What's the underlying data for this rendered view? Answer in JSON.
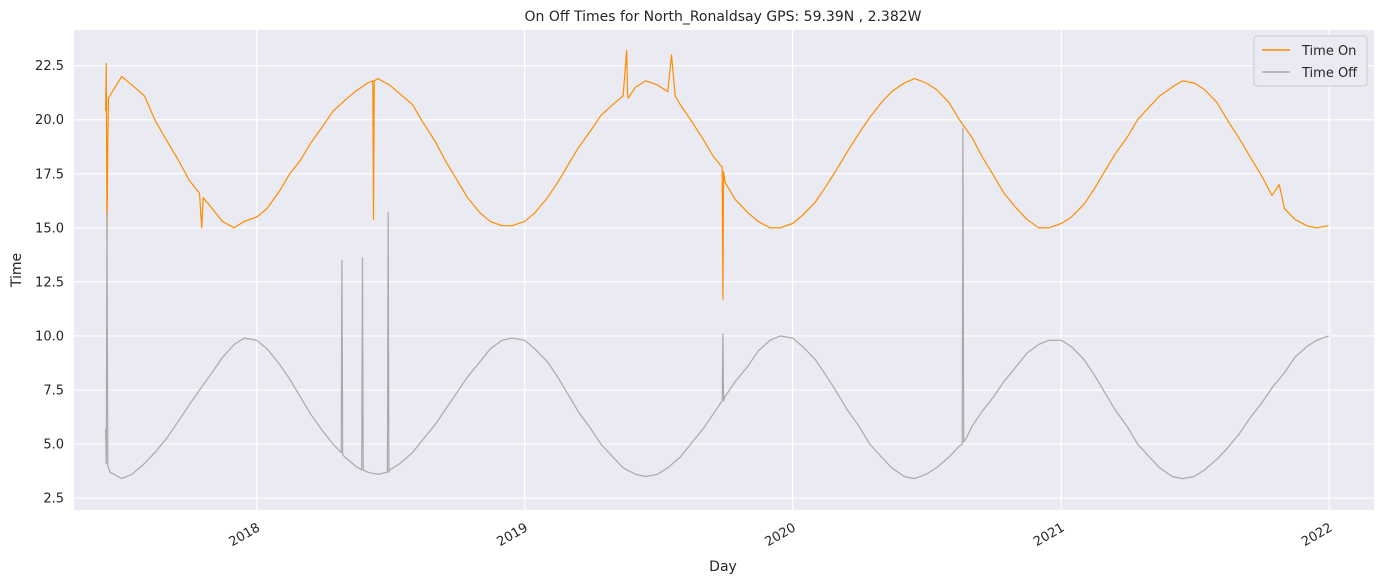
{
  "chart_data": {
    "type": "line",
    "title": "On Off Times for North_Ronaldsay  GPS: 59.39N , 2.382W",
    "xlabel": "Day",
    "ylabel": "Time",
    "xlim": [
      "2017-04-27",
      "2022-03-03"
    ],
    "ylim": [
      1.95,
      24.15
    ],
    "xticks": [
      {
        "date": "2018-01-01",
        "label": "2018"
      },
      {
        "date": "2019-01-01",
        "label": "2019"
      },
      {
        "date": "2020-01-01",
        "label": "2020"
      },
      {
        "date": "2021-01-01",
        "label": "2021"
      },
      {
        "date": "2022-01-01",
        "label": "2022"
      }
    ],
    "yticks": [
      "2.5",
      "5.0",
      "7.5",
      "10.0",
      "12.5",
      "15.0",
      "17.5",
      "20.0",
      "22.5"
    ],
    "grid": true,
    "background": "#eaeaf2",
    "legend_position": "top-right",
    "series": [
      {
        "name": "Time On",
        "color": "#ff8c00",
        "x": [
          "2017-06-09",
          "2017-06-10",
          "2017-06-11",
          "2017-06-12",
          "2017-06-13",
          "2017-06-20",
          "2017-07-01",
          "2017-07-15",
          "2017-08-01",
          "2017-08-15",
          "2017-09-01",
          "2017-09-15",
          "2017-10-01",
          "2017-10-15",
          "2017-10-18",
          "2017-10-20",
          "2017-11-01",
          "2017-11-15",
          "2017-12-01",
          "2017-12-15",
          "2018-01-01",
          "2018-01-15",
          "2018-02-01",
          "2018-02-15",
          "2018-03-01",
          "2018-03-15",
          "2018-04-01",
          "2018-04-15",
          "2018-05-01",
          "2018-05-15",
          "2018-06-01",
          "2018-06-08",
          "2018-06-09",
          "2018-06-10",
          "2018-06-15",
          "2018-07-01",
          "2018-07-15",
          "2018-08-01",
          "2018-08-15",
          "2018-09-01",
          "2018-09-15",
          "2018-10-01",
          "2018-10-15",
          "2018-11-01",
          "2018-11-15",
          "2018-12-01",
          "2018-12-15",
          "2019-01-01",
          "2019-01-15",
          "2019-02-01",
          "2019-02-15",
          "2019-03-01",
          "2019-03-15",
          "2019-04-01",
          "2019-04-15",
          "2019-05-01",
          "2019-05-15",
          "2019-05-20",
          "2019-05-21",
          "2019-05-22",
          "2019-06-01",
          "2019-06-15",
          "2019-07-01",
          "2019-07-15",
          "2019-07-20",
          "2019-07-25",
          "2019-08-01",
          "2019-08-15",
          "2019-09-01",
          "2019-09-15",
          "2019-09-27",
          "2019-09-28",
          "2019-09-29",
          "2019-10-01",
          "2019-10-15",
          "2019-11-01",
          "2019-11-15",
          "2019-12-01",
          "2019-12-15",
          "2020-01-01",
          "2020-01-15",
          "2020-02-01",
          "2020-02-15",
          "2020-03-01",
          "2020-03-15",
          "2020-04-01",
          "2020-04-15",
          "2020-05-01",
          "2020-05-15",
          "2020-06-01",
          "2020-06-15",
          "2020-07-01",
          "2020-07-15",
          "2020-08-01",
          "2020-08-15",
          "2020-09-01",
          "2020-09-15",
          "2020-10-01",
          "2020-10-15",
          "2020-11-01",
          "2020-11-15",
          "2020-12-01",
          "2020-12-15",
          "2021-01-01",
          "2021-01-15",
          "2021-02-01",
          "2021-02-15",
          "2021-03-01",
          "2021-03-15",
          "2021-04-01",
          "2021-04-15",
          "2021-05-01",
          "2021-05-15",
          "2021-06-01",
          "2021-06-15",
          "2021-07-01",
          "2021-07-15",
          "2021-08-01",
          "2021-08-15",
          "2021-09-01",
          "2021-09-15",
          "2021-10-01",
          "2021-10-15",
          "2021-10-25",
          "2021-11-01",
          "2021-11-15",
          "2021-12-01",
          "2021-12-15",
          "2021-12-31"
        ],
        "y": [
          20.4,
          22.6,
          14.4,
          18.9,
          21.0,
          21.4,
          22.0,
          21.6,
          21.1,
          20.0,
          19.0,
          18.2,
          17.2,
          16.6,
          15.0,
          16.4,
          15.9,
          15.3,
          15.0,
          15.3,
          15.5,
          15.9,
          16.7,
          17.5,
          18.1,
          18.9,
          19.7,
          20.4,
          20.9,
          21.3,
          21.7,
          21.8,
          15.4,
          21.8,
          21.9,
          21.6,
          21.2,
          20.7,
          19.9,
          19.0,
          18.1,
          17.2,
          16.4,
          15.7,
          15.3,
          15.1,
          15.1,
          15.3,
          15.7,
          16.4,
          17.1,
          17.9,
          18.7,
          19.5,
          20.2,
          20.7,
          21.1,
          23.2,
          21.2,
          21.0,
          21.5,
          21.8,
          21.6,
          21.3,
          23.0,
          21.1,
          20.7,
          20.0,
          19.1,
          18.3,
          17.8,
          11.7,
          17.6,
          17.1,
          16.3,
          15.7,
          15.3,
          15.0,
          15.0,
          15.2,
          15.6,
          16.2,
          16.9,
          17.7,
          18.5,
          19.4,
          20.1,
          20.8,
          21.3,
          21.7,
          21.9,
          21.7,
          21.4,
          20.8,
          20.0,
          19.2,
          18.3,
          17.4,
          16.6,
          15.9,
          15.4,
          15.0,
          15.0,
          15.2,
          15.5,
          16.1,
          16.8,
          17.6,
          18.4,
          19.2,
          20.0,
          20.6,
          21.1,
          21.5,
          21.8,
          21.7,
          21.4,
          20.8,
          20.0,
          19.1,
          18.3,
          17.4,
          16.5,
          17.0,
          15.9,
          15.4,
          15.1,
          15.0,
          15.1
        ]
      },
      {
        "name": "Time Off",
        "color": "#a9a9a9",
        "x": [
          "2017-06-09",
          "2017-06-10",
          "2017-06-11",
          "2017-06-12",
          "2017-06-15",
          "2017-07-01",
          "2017-07-15",
          "2017-08-01",
          "2017-08-15",
          "2017-09-01",
          "2017-09-15",
          "2017-10-01",
          "2017-10-15",
          "2017-11-01",
          "2017-11-15",
          "2017-12-01",
          "2017-12-15",
          "2018-01-01",
          "2018-01-15",
          "2018-02-01",
          "2018-02-15",
          "2018-03-01",
          "2018-03-15",
          "2018-04-01",
          "2018-04-15",
          "2018-04-26",
          "2018-04-27",
          "2018-04-28",
          "2018-05-01",
          "2018-05-15",
          "2018-05-24",
          "2018-05-25",
          "2018-05-26",
          "2018-06-01",
          "2018-06-15",
          "2018-06-28",
          "2018-06-29",
          "2018-06-30",
          "2018-07-01",
          "2018-07-15",
          "2018-08-01",
          "2018-08-15",
          "2018-09-01",
          "2018-09-15",
          "2018-10-01",
          "2018-10-15",
          "2018-11-01",
          "2018-11-15",
          "2018-12-01",
          "2018-12-15",
          "2019-01-01",
          "2019-01-15",
          "2019-02-01",
          "2019-02-15",
          "2019-03-01",
          "2019-03-15",
          "2019-04-01",
          "2019-04-15",
          "2019-05-01",
          "2019-05-15",
          "2019-06-01",
          "2019-06-15",
          "2019-07-01",
          "2019-07-15",
          "2019-08-01",
          "2019-08-15",
          "2019-09-01",
          "2019-09-15",
          "2019-09-27",
          "2019-09-28",
          "2019-09-29",
          "2019-10-01",
          "2019-10-15",
          "2019-11-01",
          "2019-11-15",
          "2019-12-01",
          "2019-12-15",
          "2020-01-01",
          "2020-01-15",
          "2020-02-01",
          "2020-02-15",
          "2020-03-01",
          "2020-03-15",
          "2020-04-01",
          "2020-04-15",
          "2020-05-01",
          "2020-05-15",
          "2020-06-01",
          "2020-06-15",
          "2020-07-01",
          "2020-07-15",
          "2020-08-01",
          "2020-08-15",
          "2020-08-19",
          "2020-08-20",
          "2020-08-21",
          "2020-08-25",
          "2020-09-01",
          "2020-09-15",
          "2020-10-01",
          "2020-10-15",
          "2020-11-01",
          "2020-11-15",
          "2020-12-01",
          "2020-12-15",
          "2021-01-01",
          "2021-01-15",
          "2021-02-01",
          "2021-02-15",
          "2021-03-01",
          "2021-03-15",
          "2021-04-01",
          "2021-04-15",
          "2021-05-01",
          "2021-05-15",
          "2021-06-01",
          "2021-06-15",
          "2021-07-01",
          "2021-07-15",
          "2021-08-01",
          "2021-08-15",
          "2021-09-01",
          "2021-09-15",
          "2021-10-01",
          "2021-10-15",
          "2021-11-01",
          "2021-11-15",
          "2021-12-01",
          "2021-12-15",
          "2021-12-31"
        ],
        "y": [
          5.7,
          4.1,
          15.7,
          4.0,
          3.7,
          3.4,
          3.6,
          4.1,
          4.6,
          5.3,
          6.0,
          6.8,
          7.5,
          8.3,
          9.0,
          9.6,
          9.9,
          9.8,
          9.4,
          8.7,
          8.0,
          7.2,
          6.4,
          5.6,
          5.0,
          4.6,
          13.5,
          4.5,
          4.4,
          4.0,
          3.8,
          13.6,
          3.8,
          3.7,
          3.6,
          3.7,
          15.7,
          3.7,
          3.8,
          4.1,
          4.6,
          5.2,
          5.9,
          6.6,
          7.4,
          8.1,
          8.8,
          9.4,
          9.8,
          9.9,
          9.8,
          9.4,
          8.8,
          8.1,
          7.3,
          6.5,
          5.7,
          5.0,
          4.4,
          3.9,
          3.6,
          3.5,
          3.6,
          3.9,
          4.4,
          5.0,
          5.7,
          6.4,
          7.0,
          10.1,
          7.0,
          7.2,
          7.9,
          8.6,
          9.3,
          9.8,
          10.0,
          9.9,
          9.5,
          8.9,
          8.2,
          7.4,
          6.6,
          5.8,
          5.0,
          4.4,
          3.9,
          3.5,
          3.4,
          3.6,
          3.9,
          4.4,
          4.9,
          5.0,
          19.6,
          5.1,
          5.3,
          5.8,
          6.5,
          7.2,
          7.9,
          8.6,
          9.2,
          9.6,
          9.8,
          9.8,
          9.5,
          8.9,
          8.2,
          7.4,
          6.6,
          5.8,
          5.0,
          4.4,
          3.9,
          3.5,
          3.4,
          3.5,
          3.8,
          4.3,
          4.8,
          5.5,
          6.2,
          6.9,
          7.6,
          8.3,
          9.0,
          9.5,
          9.8,
          10.0
        ]
      }
    ]
  }
}
